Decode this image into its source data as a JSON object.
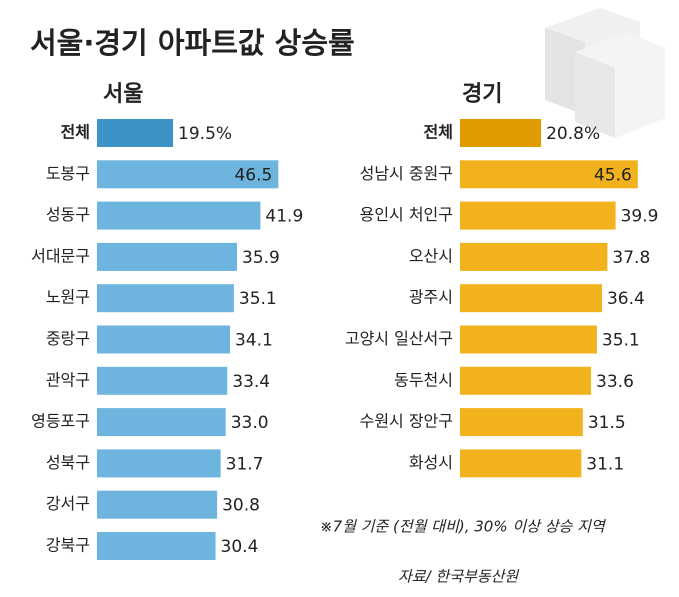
{
  "title": "서울·경기 아파트값 상승률",
  "note": "※7월 기준 (전월 대비), 30% 이상 상승 지역",
  "source": "자료/ 한국부동산원",
  "chart_data": [
    {
      "type": "bar",
      "title": "서울",
      "color": "#6db4de",
      "total_color": "#3d93c6",
      "categories": [
        "전체",
        "도봉구",
        "성동구",
        "서대문구",
        "노원구",
        "중랑구",
        "관악구",
        "영등포구",
        "성북구",
        "강서구",
        "강북구"
      ],
      "values": [
        19.5,
        46.5,
        41.9,
        35.9,
        35.1,
        34.1,
        33.4,
        33.0,
        31.7,
        30.8,
        30.4
      ],
      "value_labels": [
        "19.5%",
        "46.5",
        "41.9",
        "35.9",
        "35.1",
        "34.1",
        "33.4",
        "33.0",
        "31.7",
        "30.8",
        "30.4"
      ]
    },
    {
      "type": "bar",
      "title": "경기",
      "color": "#f2b21e",
      "total_color": "#e09b00",
      "categories": [
        "전체",
        "성남시 중원구",
        "용인시 처인구",
        "오산시",
        "광주시",
        "고양시 일산서구",
        "동두천시",
        "수원시 장안구",
        "화성시"
      ],
      "values": [
        20.8,
        45.6,
        39.9,
        37.8,
        36.4,
        35.1,
        33.6,
        31.5,
        31.1
      ],
      "value_labels": [
        "20.8%",
        "45.6",
        "39.9",
        "37.8",
        "36.4",
        "35.1",
        "33.6",
        "31.5",
        "31.1"
      ]
    }
  ]
}
